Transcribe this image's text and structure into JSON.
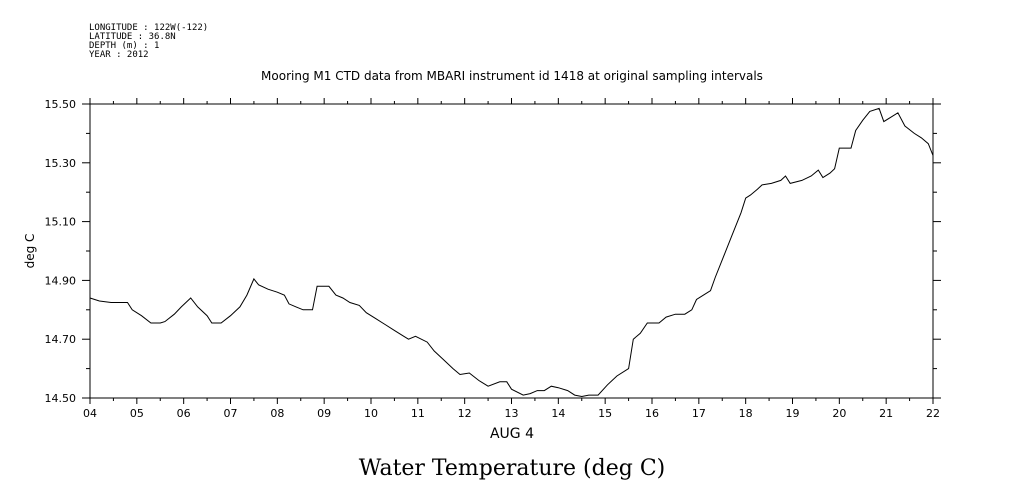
{
  "header": {
    "meta_lines": [
      "LONGITUDE : 122W(-122)",
      "LATITUDE : 36.8N",
      "DEPTH (m) : 1",
      "YEAR : 2012"
    ],
    "title": "Mooring M1 CTD data from MBARI instrument id 1418 at original sampling intervals"
  },
  "footer": {
    "title": "Water Temperature (deg C)"
  },
  "chart_data": {
    "type": "line",
    "title": "Mooring M1 CTD data from MBARI instrument id 1418 at original sampling intervals",
    "xlabel": "AUG 4",
    "ylabel": "deg C",
    "xlim": [
      4,
      22
    ],
    "ylim": [
      14.5,
      15.5
    ],
    "x_ticks": [
      "04",
      "05",
      "06",
      "07",
      "08",
      "09",
      "10",
      "11",
      "12",
      "13",
      "14",
      "15",
      "16",
      "17",
      "18",
      "19",
      "20",
      "21",
      "22"
    ],
    "y_ticks": [
      "14.50",
      "14.70",
      "14.90",
      "15.10",
      "15.30",
      "15.50"
    ],
    "y_tick_values": [
      14.5,
      14.7,
      14.9,
      15.1,
      15.3,
      15.5
    ],
    "y_minor_step": 0.1,
    "x_minor_step": 0.5,
    "grid": false,
    "series": [
      {
        "values": [
          [
            4.0,
            14.84
          ],
          [
            4.2,
            14.83
          ],
          [
            4.45,
            14.825
          ],
          [
            4.65,
            14.825
          ],
          [
            4.8,
            14.825
          ],
          [
            4.9,
            14.8
          ],
          [
            5.1,
            14.78
          ],
          [
            5.3,
            14.755
          ],
          [
            5.5,
            14.755
          ],
          [
            5.6,
            14.76
          ],
          [
            5.8,
            14.785
          ],
          [
            5.95,
            14.81
          ],
          [
            6.15,
            14.84
          ],
          [
            6.3,
            14.81
          ],
          [
            6.5,
            14.78
          ],
          [
            6.6,
            14.755
          ],
          [
            6.8,
            14.755
          ],
          [
            7.0,
            14.78
          ],
          [
            7.2,
            14.81
          ],
          [
            7.35,
            14.85
          ],
          [
            7.5,
            14.905
          ],
          [
            7.6,
            14.885
          ],
          [
            7.8,
            14.87
          ],
          [
            8.0,
            14.86
          ],
          [
            8.15,
            14.85
          ],
          [
            8.25,
            14.82
          ],
          [
            8.4,
            14.81
          ],
          [
            8.55,
            14.8
          ],
          [
            8.75,
            14.8
          ],
          [
            8.85,
            14.88
          ],
          [
            9.1,
            14.88
          ],
          [
            9.25,
            14.85
          ],
          [
            9.4,
            14.84
          ],
          [
            9.55,
            14.825
          ],
          [
            9.75,
            14.815
          ],
          [
            9.9,
            14.79
          ],
          [
            10.1,
            14.77
          ],
          [
            10.3,
            14.75
          ],
          [
            10.5,
            14.73
          ],
          [
            10.7,
            14.71
          ],
          [
            10.8,
            14.7
          ],
          [
            10.95,
            14.71
          ],
          [
            11.2,
            14.69
          ],
          [
            11.35,
            14.66
          ],
          [
            11.55,
            14.63
          ],
          [
            11.75,
            14.6
          ],
          [
            11.9,
            14.58
          ],
          [
            12.1,
            14.585
          ],
          [
            12.3,
            14.56
          ],
          [
            12.5,
            14.54
          ],
          [
            12.75,
            14.555
          ],
          [
            12.9,
            14.555
          ],
          [
            13.0,
            14.53
          ],
          [
            13.25,
            14.51
          ],
          [
            13.4,
            14.515
          ],
          [
            13.55,
            14.525
          ],
          [
            13.7,
            14.525
          ],
          [
            13.85,
            14.54
          ],
          [
            14.0,
            14.535
          ],
          [
            14.2,
            14.525
          ],
          [
            14.35,
            14.51
          ],
          [
            14.5,
            14.505
          ],
          [
            14.65,
            14.51
          ],
          [
            14.85,
            14.51
          ],
          [
            15.05,
            14.545
          ],
          [
            15.25,
            14.575
          ],
          [
            15.5,
            14.6
          ],
          [
            15.6,
            14.7
          ],
          [
            15.75,
            14.72
          ],
          [
            15.9,
            14.755
          ],
          [
            16.15,
            14.755
          ],
          [
            16.3,
            14.775
          ],
          [
            16.5,
            14.785
          ],
          [
            16.7,
            14.785
          ],
          [
            16.85,
            14.8
          ],
          [
            16.95,
            14.835
          ],
          [
            17.1,
            14.85
          ],
          [
            17.25,
            14.865
          ],
          [
            17.35,
            14.91
          ],
          [
            17.55,
            14.99
          ],
          [
            17.7,
            15.05
          ],
          [
            17.9,
            15.13
          ],
          [
            18.0,
            15.18
          ],
          [
            18.1,
            15.19
          ],
          [
            18.25,
            15.21
          ],
          [
            18.35,
            15.225
          ],
          [
            18.55,
            15.23
          ],
          [
            18.75,
            15.24
          ],
          [
            18.85,
            15.255
          ],
          [
            18.95,
            15.23
          ],
          [
            19.2,
            15.24
          ],
          [
            19.4,
            15.255
          ],
          [
            19.55,
            15.275
          ],
          [
            19.65,
            15.25
          ],
          [
            19.8,
            15.265
          ],
          [
            19.9,
            15.28
          ],
          [
            20.0,
            15.35
          ],
          [
            20.25,
            15.35
          ],
          [
            20.35,
            15.41
          ],
          [
            20.5,
            15.445
          ],
          [
            20.65,
            15.475
          ],
          [
            20.85,
            15.485
          ],
          [
            20.95,
            15.44
          ],
          [
            21.1,
            15.455
          ],
          [
            21.25,
            15.47
          ],
          [
            21.4,
            15.425
          ],
          [
            21.6,
            15.4
          ],
          [
            21.75,
            15.385
          ],
          [
            21.9,
            15.365
          ],
          [
            22.0,
            15.325
          ]
        ]
      }
    ]
  }
}
